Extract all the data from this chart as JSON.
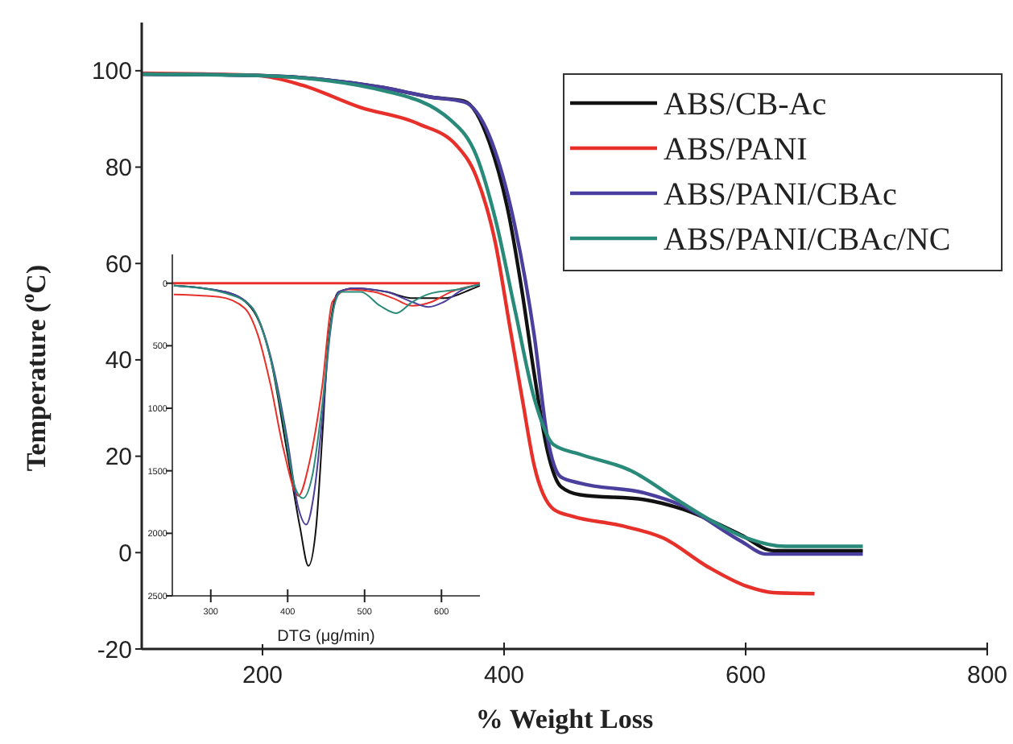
{
  "chart_data": [
    {
      "type": "line",
      "xlabel": "% Weight Loss",
      "ylabel": "Temperature ($^{o}$C)",
      "xlim": [
        100,
        800
      ],
      "ylim": [
        -20,
        110
      ],
      "xticks": [
        200,
        400,
        600,
        800
      ],
      "yticks": [
        -20,
        0,
        20,
        40,
        60,
        80,
        100
      ],
      "legend": "top right",
      "series": [
        {
          "name": "ABS/CB-Ac",
          "color": "#111111",
          "x": [
            100,
            200,
            300,
            340,
            367,
            388,
            404,
            415,
            425,
            436,
            447,
            463,
            516,
            548,
            596,
            623,
            697
          ],
          "values": [
            99.3,
            99,
            96.5,
            94.5,
            93.7,
            85,
            70,
            54,
            37,
            21,
            13.7,
            12,
            11,
            9,
            3.7,
            0.4,
            0.4
          ]
        },
        {
          "name": "ABS/PANI",
          "color": "#e8302a",
          "x": [
            100,
            196,
            233,
            281,
            329,
            361,
            377,
            393,
            404,
            415,
            425,
            441,
            457,
            495,
            532,
            569,
            601,
            623,
            657
          ],
          "values": [
            99.5,
            99,
            97,
            92.4,
            89,
            84.4,
            78,
            64,
            48,
            32,
            18,
            9,
            7.5,
            5.7,
            3,
            -3,
            -7,
            -8.3,
            -8.5
          ]
        },
        {
          "name": "ABS/PANI/CBAc",
          "color": "#4b3f9e",
          "x": [
            100,
            200,
            300,
            340,
            367,
            388,
            409,
            425,
            436,
            447,
            463,
            516,
            548,
            596,
            617,
            697
          ],
          "values": [
            99.3,
            99,
            96.5,
            94.5,
            93.5,
            86.4,
            67.7,
            45,
            23.7,
            15.7,
            14.4,
            12.4,
            9.7,
            2.4,
            -0.3,
            -0.3
          ]
        },
        {
          "name": "ABS/PANI/CBAc/NC",
          "color": "#2a8a7a",
          "x": [
            100,
            196,
            303,
            356,
            377,
            393,
            409,
            425,
            441,
            463,
            505,
            543,
            569,
            601,
            633,
            697
          ],
          "values": [
            99.3,
            99,
            95.7,
            89.7,
            82.4,
            69,
            50.4,
            32,
            22.4,
            20.4,
            17,
            11,
            7,
            3,
            1.3,
            1.3
          ]
        }
      ]
    },
    {
      "type": "line",
      "xlabel": "DTG (μg/min)",
      "xlim": [
        250,
        650
      ],
      "ylim": [
        2500,
        -230
      ],
      "xticks": [
        300,
        400,
        500,
        600
      ],
      "yticks": [
        0,
        500,
        1000,
        1500,
        2000,
        2500
      ],
      "ref_lines": [
        {
          "axis": "y",
          "value": 0,
          "color": "#e8302a"
        }
      ],
      "series": [
        {
          "color": "#111111",
          "x": [
            252,
            319,
            353,
            378,
            399,
            416,
            427,
            437,
            445,
            453,
            466,
            487,
            529,
            562,
            603,
            638,
            650
          ],
          "values": [
            20,
            70,
            200,
            610,
            1340,
            1950,
            2260,
            1950,
            1230,
            460,
            70,
            40,
            70,
            120,
            120,
            50,
            20
          ]
        },
        {
          "color": "#e8302a",
          "x": [
            252,
            311,
            344,
            361,
            378,
            395,
            414,
            428,
            445,
            458,
            479,
            512,
            537,
            562,
            587,
            612,
            650
          ],
          "values": [
            90,
            110,
            200,
            410,
            820,
            1340,
            1700,
            1440,
            820,
            150,
            50,
            70,
            120,
            180,
            150,
            70,
            10
          ]
        },
        {
          "color": "#4b3f9e",
          "x": [
            252,
            319,
            353,
            378,
            399,
            414,
            424,
            435,
            445,
            455,
            466,
            487,
            529,
            562,
            583,
            603,
            628,
            650
          ],
          "values": [
            20,
            70,
            190,
            590,
            1230,
            1800,
            1930,
            1650,
            1080,
            410,
            70,
            40,
            70,
            150,
            190,
            150,
            50,
            10
          ]
        },
        {
          "color": "#2a8a7a",
          "x": [
            252,
            319,
            353,
            378,
            395,
            410,
            420,
            432,
            445,
            458,
            470,
            495,
            520,
            541,
            562,
            587,
            621,
            650
          ],
          "values": [
            20,
            80,
            190,
            610,
            1130,
            1640,
            1720,
            1540,
            970,
            250,
            70,
            70,
            180,
            240,
            150,
            80,
            50,
            10
          ]
        }
      ]
    }
  ]
}
